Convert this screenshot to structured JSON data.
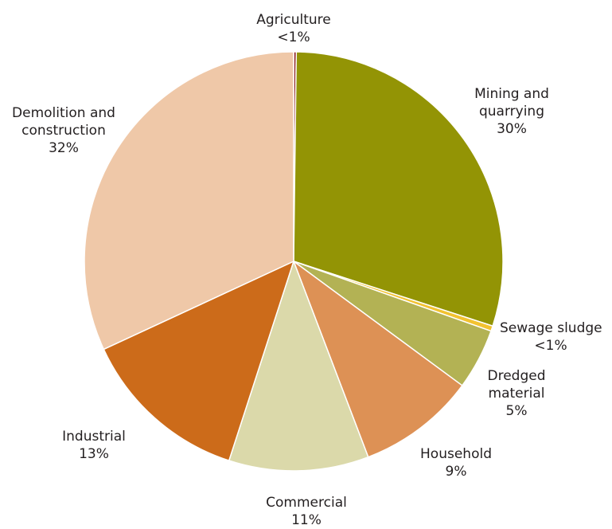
{
  "chart_data": {
    "type": "pie",
    "categories": [
      "Agriculture",
      "Mining and quarrying",
      "Sewage sludge",
      "Dredged material",
      "Household",
      "Commercial",
      "Industrial",
      "Demolition and construction"
    ],
    "values": [
      0.2,
      29.8,
      0.4,
      4.7,
      9.1,
      10.8,
      13.1,
      31.9
    ],
    "value_labels": [
      "<1%",
      "30%",
      "<1%",
      "5%",
      "9%",
      "11%",
      "13%",
      "32%"
    ],
    "colors": [
      "#8b1a1a",
      "#939405",
      "#f2c230",
      "#b3b254",
      "#dd9155",
      "#dbd9aa",
      "#cc6b1a",
      "#efc8a8"
    ],
    "start": "12 o'clock",
    "direction": "clockwise",
    "title": "",
    "legend": "none"
  },
  "labels": [
    {
      "name": "Agriculture",
      "lines": [
        "Agriculture"
      ],
      "value": "<1%"
    },
    {
      "name": "Mining and quarrying",
      "lines": [
        "Mining and",
        "quarrying"
      ],
      "value": "30%"
    },
    {
      "name": "Sewage sludge",
      "lines": [
        "Sewage sludge"
      ],
      "value": "<1%"
    },
    {
      "name": "Dredged material",
      "lines": [
        "Dredged",
        "material"
      ],
      "value": "5%"
    },
    {
      "name": "Household",
      "lines": [
        "Household"
      ],
      "value": "9%"
    },
    {
      "name": "Commercial",
      "lines": [
        "Commercial"
      ],
      "value": "11%"
    },
    {
      "name": "Industrial",
      "lines": [
        "Industrial"
      ],
      "value": "13%"
    },
    {
      "name": "Demolition and construction",
      "lines": [
        "Demolition and",
        "construction"
      ],
      "value": "32%"
    }
  ]
}
